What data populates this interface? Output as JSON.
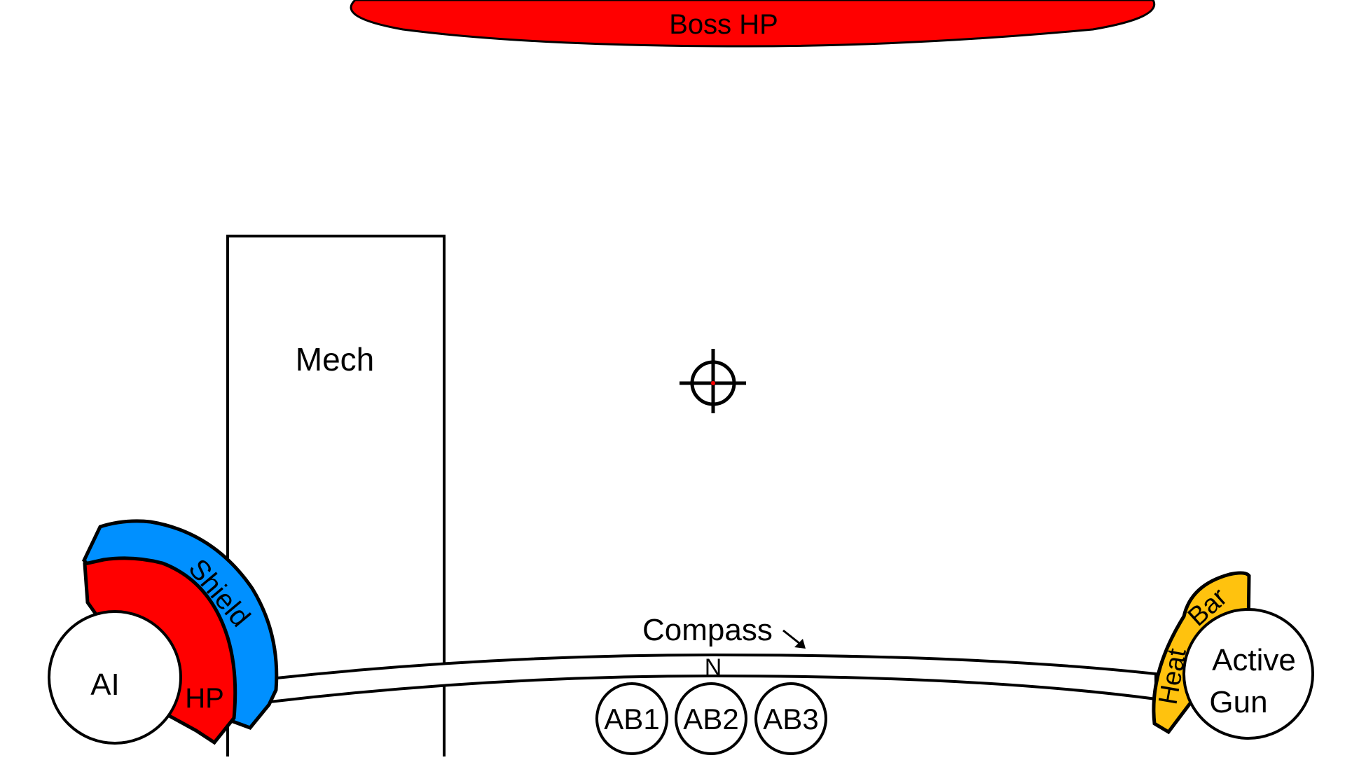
{
  "boss": {
    "label": "Boss HP",
    "color": "#ff0000"
  },
  "mech": {
    "label": "Mech"
  },
  "crosshair": {
    "icon": "crosshair-icon",
    "dot_color": "#ff0000"
  },
  "player": {
    "ai_label": "AI",
    "hp_label": "HP",
    "shield_label": "Shield",
    "hp_color": "#ff0000",
    "shield_color": "#0090ff"
  },
  "compass": {
    "label": "Compass",
    "heading": "N"
  },
  "abilities": [
    {
      "label": "AB1"
    },
    {
      "label": "AB2"
    },
    {
      "label": "AB3"
    }
  ],
  "weapon": {
    "line1": "Active",
    "line2": "Gun",
    "heat_word1": "Heat",
    "heat_word2": "Bar",
    "heat_color": "#ffc20e"
  }
}
